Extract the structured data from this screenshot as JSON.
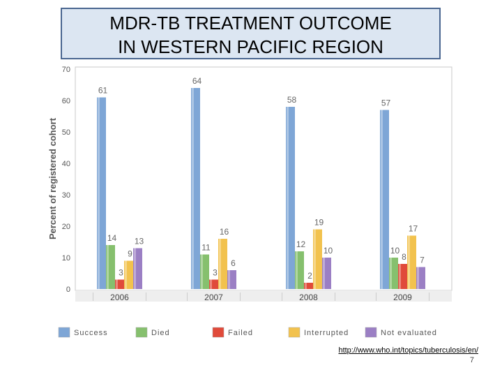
{
  "title": {
    "line1": "MDR-TB TREATMENT OUTCOME",
    "line2": "IN WESTERN PACIFIC REGION"
  },
  "chart_data": {
    "type": "bar",
    "ylabel": "Percent of registered cohort",
    "categories": [
      "2006",
      "2007",
      "2008",
      "2009"
    ],
    "ylim": [
      0,
      70
    ],
    "yticks": [
      0,
      10,
      20,
      30,
      40,
      50,
      60,
      70
    ],
    "grid": false,
    "legend": "bottom",
    "series": [
      {
        "name": "Success",
        "color": "#7ea6d6",
        "values": [
          61,
          64,
          58,
          57
        ]
      },
      {
        "name": "Died",
        "color": "#86c06e",
        "values": [
          14,
          11,
          12,
          10
        ]
      },
      {
        "name": "Failed",
        "color": "#e04a3a",
        "values": [
          3,
          3,
          2,
          8
        ]
      },
      {
        "name": "Interrupted",
        "color": "#f2c24e",
        "values": [
          9,
          16,
          19,
          17
        ]
      },
      {
        "name": "Not evaluated",
        "color": "#9b7fc4",
        "values": [
          13,
          6,
          10,
          7
        ]
      }
    ]
  },
  "source": "http://www.who.int/topics/tuberculosis/en/",
  "page_number": "7"
}
